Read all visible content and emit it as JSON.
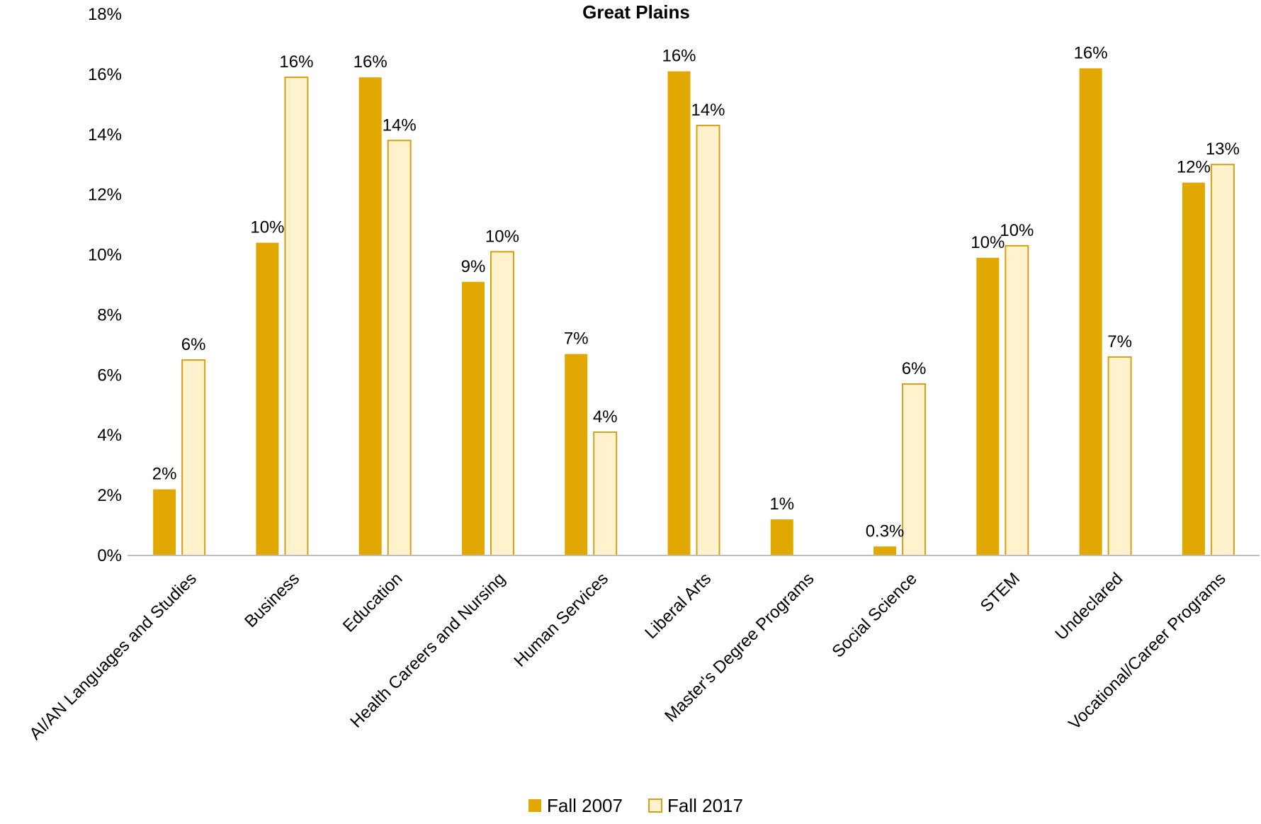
{
  "chart_data": {
    "type": "bar",
    "title": "Great Plains",
    "categories": [
      "AI/AN Languages and Studies",
      "Business",
      "Education",
      "Health Careers and Nursing",
      "Human Services",
      "Liberal Arts",
      "Master's Degree Programs",
      "Social Science",
      "STEM",
      "Undeclared",
      "Vocational/Career Programs"
    ],
    "series": [
      {
        "name": "Fall 2007",
        "color": "#E0A800",
        "values": [
          2.2,
          10.4,
          15.9,
          9.1,
          6.7,
          16.1,
          1.2,
          0.3,
          9.9,
          16.2,
          12.4
        ],
        "labels": [
          "2%",
          "10%",
          "16%",
          "9%",
          "7%",
          "16%",
          "1%",
          "0.3%",
          "10%",
          "16%",
          "12%"
        ]
      },
      {
        "name": "Fall 2017",
        "color": "#FFF2CC",
        "stroke": "#D4A017",
        "values": [
          6.5,
          15.9,
          13.8,
          10.1,
          4.1,
          14.3,
          null,
          5.7,
          10.3,
          6.6,
          13.0
        ],
        "labels": [
          "6%",
          "16%",
          "14%",
          "10%",
          "4%",
          "14%",
          "",
          "6%",
          "10%",
          "7%",
          "13%"
        ]
      }
    ],
    "ylim": [
      0,
      18
    ],
    "yticks": [
      "0%",
      "2%",
      "4%",
      "6%",
      "8%",
      "10%",
      "12%",
      "14%",
      "16%",
      "18%"
    ],
    "ytick_values": [
      0,
      2,
      4,
      6,
      8,
      10,
      12,
      14,
      16,
      18
    ],
    "grid": false,
    "legend": "bottom"
  }
}
